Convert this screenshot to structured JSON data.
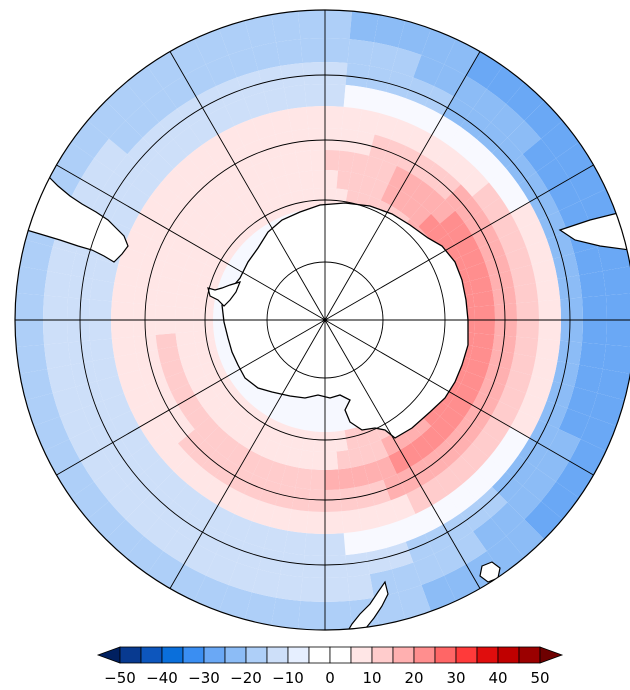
{
  "map": {
    "projection": "south-polar-stereographic",
    "coastline_color": "#000000",
    "graticule_color": "#000000",
    "ocean_background": "#ffffff",
    "meridians_deg": [
      0,
      30,
      60,
      90,
      120,
      150,
      180,
      210,
      240,
      270,
      300,
      330
    ],
    "parallels_deg": [
      -80,
      -70,
      -60,
      -50,
      -40
    ],
    "features": {
      "negative_band_outer_ocean": "blue",
      "positive_ring_around_antarctica": "red",
      "strongest_positive": "indian-ocean sector near coast"
    }
  },
  "colorbar": {
    "labels": [
      "-50",
      "-40",
      "-30",
      "-20",
      "-10",
      "0",
      "10",
      "20",
      "30",
      "40",
      "50"
    ],
    "colors": [
      "#002060",
      "#083a90",
      "#0d56bd",
      "#0a6fdb",
      "#3a8ef2",
      "#6aa8f5",
      "#8cbcf6",
      "#aecff8",
      "#cddff9",
      "#e6efff",
      "#ffffff",
      "#ffffff",
      "#ffe6e6",
      "#ffcccc",
      "#ffb0b0",
      "#ff8e8e",
      "#ff6666",
      "#ff3a3a",
      "#e00d0d",
      "#c00000",
      "#9b0000",
      "#6e0000"
    ],
    "extend": "both"
  }
}
